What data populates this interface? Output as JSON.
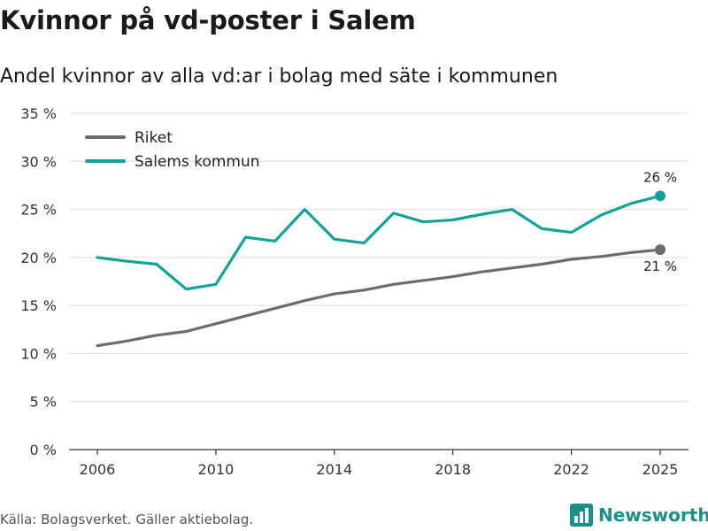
{
  "header": {
    "title": "Kvinnor på vd-poster i Salem",
    "subtitle": "Andel kvinnor av alla vd:ar i bolag med säte i kommunen"
  },
  "footer": {
    "source": "Källa: Bolagsverket. Gäller aktiebolag.",
    "brand": "Newsworthy"
  },
  "colors": {
    "riket": "#6d6b72",
    "salem": "#12a39a",
    "grid": "#dddddd",
    "brand": "#1b8f89"
  },
  "icons": {
    "brand_logo": "bar-chart-logo-icon"
  },
  "chart_data": {
    "type": "line",
    "title": "Kvinnor på vd-poster i Salem",
    "subtitle": "Andel kvinnor av alla vd:ar i bolag med säte i kommunen",
    "xlabel": "",
    "ylabel": "",
    "xlim": [
      2006,
      2025
    ],
    "ylim": [
      0,
      35
    ],
    "grid": true,
    "x_ticks": [
      2006,
      2010,
      2014,
      2018,
      2022,
      2025
    ],
    "x_tick_labels": [
      "2006",
      "2010",
      "2014",
      "2018",
      "2022",
      "2025"
    ],
    "y_ticks": [
      0,
      5,
      10,
      15,
      20,
      25,
      30,
      35
    ],
    "y_tick_labels": [
      "0 %",
      "5 %",
      "10 %",
      "15 %",
      "20 %",
      "25 %",
      "30 %",
      "35 %"
    ],
    "legend_position": "top-left",
    "x": [
      2006,
      2007,
      2008,
      2009,
      2010,
      2011,
      2012,
      2013,
      2014,
      2015,
      2016,
      2017,
      2018,
      2019,
      2020,
      2021,
      2022,
      2023,
      2024,
      2025
    ],
    "series": [
      {
        "name": "Riket",
        "values": [
          10.8,
          11.3,
          11.9,
          12.3,
          13.1,
          13.9,
          14.7,
          15.5,
          16.2,
          16.6,
          17.2,
          17.6,
          18.0,
          18.5,
          18.9,
          19.3,
          19.8,
          20.1,
          20.5,
          20.8
        ],
        "end_label": "21 %"
      },
      {
        "name": "Salems kommun",
        "values": [
          20.0,
          19.6,
          19.3,
          16.7,
          17.2,
          22.1,
          21.7,
          25.0,
          21.9,
          21.5,
          24.6,
          23.7,
          23.9,
          24.5,
          25.0,
          23.0,
          22.6,
          24.4,
          25.6,
          26.4
        ],
        "end_label": "26 %"
      }
    ]
  }
}
